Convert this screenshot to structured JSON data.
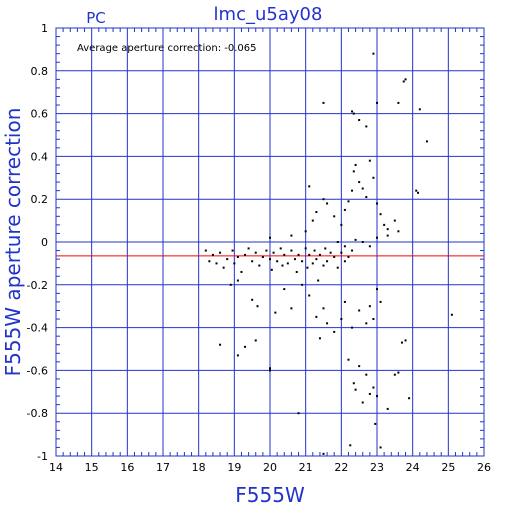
{
  "chart_data": {
    "type": "scatter",
    "title": "lmc_u5ay08",
    "subtitle": "PC",
    "annotation": "Average aperture correction:  -0.065",
    "xlabel": "F555W",
    "ylabel": "F555W aperture correction",
    "xlim": [
      14,
      26
    ],
    "ylim": [
      -1,
      1
    ],
    "x_ticks": [
      "14",
      "15",
      "16",
      "17",
      "18",
      "19",
      "20",
      "21",
      "22",
      "23",
      "24",
      "25",
      "26"
    ],
    "y_ticks": [
      "-1",
      "-0.8",
      "-0.6",
      "-0.4",
      "-0.2",
      "0",
      "0.2",
      "0.4",
      "0.6",
      "0.8",
      "1"
    ],
    "reference_line": -0.065,
    "grid": true,
    "colors": {
      "axes": "#2233cc",
      "grid": "#2233cc",
      "reference_line": "#ff0000",
      "points": "#000000"
    },
    "points": [
      [
        18.2,
        -0.04
      ],
      [
        18.3,
        -0.09
      ],
      [
        18.4,
        -0.06
      ],
      [
        18.5,
        -0.1
      ],
      [
        18.6,
        -0.05
      ],
      [
        18.7,
        -0.12
      ],
      [
        18.8,
        -0.08
      ],
      [
        18.9,
        -0.2
      ],
      [
        18.95,
        -0.04
      ],
      [
        19.0,
        -0.1
      ],
      [
        19.1,
        -0.07
      ],
      [
        19.2,
        -0.14
      ],
      [
        19.3,
        -0.06
      ],
      [
        19.4,
        -0.03
      ],
      [
        19.5,
        -0.09
      ],
      [
        19.6,
        -0.05
      ],
      [
        19.65,
        -0.3
      ],
      [
        19.7,
        -0.11
      ],
      [
        19.8,
        -0.07
      ],
      [
        19.9,
        -0.04
      ],
      [
        20.0,
        -0.08
      ],
      [
        20.05,
        -0.13
      ],
      [
        20.1,
        -0.05
      ],
      [
        20.15,
        -0.33
      ],
      [
        20.2,
        -0.09
      ],
      [
        20.3,
        -0.03
      ],
      [
        20.35,
        -0.11
      ],
      [
        20.4,
        -0.06
      ],
      [
        20.5,
        -0.1
      ],
      [
        20.6,
        -0.04
      ],
      [
        20.7,
        -0.08
      ],
      [
        20.75,
        -0.14
      ],
      [
        20.8,
        -0.06
      ],
      [
        20.9,
        -0.09
      ],
      [
        21.0,
        -0.03
      ],
      [
        21.05,
        -0.12
      ],
      [
        21.1,
        -0.06
      ],
      [
        21.2,
        -0.1
      ],
      [
        21.25,
        -0.04
      ],
      [
        21.3,
        -0.08
      ],
      [
        21.35,
        -0.18
      ],
      [
        21.4,
        -0.06
      ],
      [
        21.5,
        -0.11
      ],
      [
        21.55,
        -0.03
      ],
      [
        21.6,
        -0.09
      ],
      [
        21.7,
        -0.05
      ],
      [
        21.8,
        -0.07
      ],
      [
        21.9,
        -0.12
      ],
      [
        22.0,
        -0.05
      ],
      [
        22.1,
        -0.09
      ],
      [
        22.2,
        -0.07
      ],
      [
        22.3,
        -0.04
      ],
      [
        19.1,
        -0.18
      ],
      [
        19.5,
        -0.27
      ],
      [
        20.4,
        -0.22
      ],
      [
        20.6,
        -0.31
      ],
      [
        20.9,
        -0.2
      ],
      [
        21.1,
        -0.25
      ],
      [
        21.3,
        -0.35
      ],
      [
        21.5,
        -0.31
      ],
      [
        21.4,
        -0.45
      ],
      [
        21.6,
        -0.38
      ],
      [
        21.8,
        -0.42
      ],
      [
        22.0,
        -0.36
      ],
      [
        22.1,
        -0.28
      ],
      [
        22.3,
        -0.4
      ],
      [
        22.5,
        -0.32
      ],
      [
        22.7,
        -0.38
      ],
      [
        22.8,
        -0.3
      ],
      [
        22.9,
        -0.36
      ],
      [
        23.0,
        -0.22
      ],
      [
        23.1,
        -0.28
      ],
      [
        18.6,
        -0.48
      ],
      [
        19.1,
        -0.53
      ],
      [
        19.3,
        -0.49
      ],
      [
        19.6,
        -0.46
      ],
      [
        20.0,
        -0.59
      ],
      [
        20.0,
        -0.6
      ],
      [
        22.2,
        -0.55
      ],
      [
        22.35,
        -0.66
      ],
      [
        22.4,
        -0.69
      ],
      [
        22.5,
        -0.58
      ],
      [
        22.6,
        -0.75
      ],
      [
        22.7,
        -0.62
      ],
      [
        22.8,
        -0.71
      ],
      [
        22.9,
        -0.68
      ],
      [
        22.95,
        -0.85
      ],
      [
        23.0,
        -0.72
      ],
      [
        23.1,
        -0.96
      ],
      [
        23.3,
        -0.78
      ],
      [
        23.5,
        -0.62
      ],
      [
        23.6,
        -0.61
      ],
      [
        23.7,
        -0.47
      ],
      [
        23.8,
        -0.46
      ],
      [
        23.9,
        -0.73
      ],
      [
        25.1,
        -0.34
      ],
      [
        20.8,
        -0.8
      ],
      [
        21.5,
        -0.99
      ],
      [
        22.25,
        -0.95
      ],
      [
        20.0,
        0.02
      ],
      [
        20.6,
        0.03
      ],
      [
        21.0,
        0.05
      ],
      [
        21.2,
        0.1
      ],
      [
        21.3,
        0.14
      ],
      [
        21.5,
        0.2
      ],
      [
        21.6,
        0.18
      ],
      [
        21.8,
        0.12
      ],
      [
        22.0,
        0.08
      ],
      [
        22.1,
        0.15
      ],
      [
        22.2,
        0.19
      ],
      [
        22.3,
        0.24
      ],
      [
        22.35,
        0.33
      ],
      [
        22.4,
        0.36
      ],
      [
        22.5,
        0.28
      ],
      [
        22.6,
        0.25
      ],
      [
        22.7,
        0.21
      ],
      [
        22.8,
        0.38
      ],
      [
        22.9,
        0.3
      ],
      [
        23.0,
        0.18
      ],
      [
        23.1,
        0.13
      ],
      [
        23.2,
        0.08
      ],
      [
        23.3,
        0.06
      ],
      [
        23.5,
        0.1
      ],
      [
        23.6,
        0.05
      ],
      [
        24.1,
        0.24
      ],
      [
        24.15,
        0.23
      ],
      [
        24.4,
        0.47
      ],
      [
        21.1,
        0.26
      ],
      [
        21.5,
        0.65
      ],
      [
        22.3,
        0.61
      ],
      [
        22.35,
        0.6
      ],
      [
        22.5,
        0.57
      ],
      [
        22.7,
        0.54
      ],
      [
        22.9,
        0.88
      ],
      [
        23.0,
        0.65
      ],
      [
        23.6,
        0.65
      ],
      [
        23.75,
        0.75
      ],
      [
        23.8,
        0.76
      ],
      [
        24.2,
        0.62
      ],
      [
        21.9,
        0.0
      ],
      [
        22.1,
        -0.02
      ],
      [
        22.4,
        0.01
      ],
      [
        22.6,
        0.0
      ],
      [
        22.8,
        -0.02
      ],
      [
        23.0,
        0.02
      ],
      [
        23.3,
        0.03
      ]
    ]
  }
}
